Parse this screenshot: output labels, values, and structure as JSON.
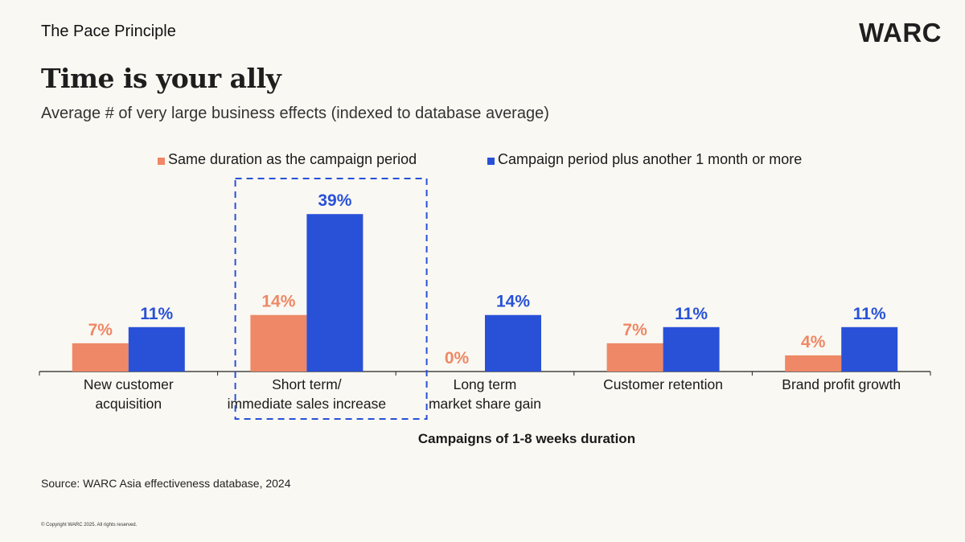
{
  "header": {
    "kicker": "The Pace Principle",
    "logo": "WARC",
    "title": "Time is your ally",
    "subtitle": "Average # of very large business effects (indexed to database average)"
  },
  "colors": {
    "series_same": "#ee8866",
    "series_plus": "#2851d8",
    "background": "#faf8f2",
    "highlight_border": "#2851d8"
  },
  "chart_data": {
    "type": "bar",
    "title": "Time is your ally",
    "subtitle": "Average # of very large business effects (indexed to database average)",
    "xlabel": "Campaigns of 1-8 weeks duration",
    "ylabel": "",
    "categories": [
      [
        "New customer",
        "acquisition"
      ],
      [
        "Short term/",
        "immediate sales increase"
      ],
      [
        "Long term",
        "market share gain"
      ],
      [
        "Customer retention"
      ],
      [
        "Brand profit growth"
      ]
    ],
    "series": [
      {
        "name": "Same duration as the campaign period",
        "values": [
          7,
          14,
          0,
          7,
          4
        ],
        "labels": [
          "7%",
          "14%",
          "0%",
          "7%",
          "4%"
        ]
      },
      {
        "name": "Campaign period plus another 1 month or more",
        "values": [
          11,
          39,
          14,
          11,
          11
        ],
        "labels": [
          "11%",
          "39%",
          "14%",
          "11%",
          "11%"
        ]
      }
    ],
    "ylim": [
      0,
      40
    ],
    "grid": false,
    "legend": "top-center",
    "highlighted_category_index": 1
  },
  "footer": {
    "source": "Source: WARC Asia effectiveness database, 2024",
    "copyright": "© Copyright WARC 2025. All rights reserved."
  }
}
